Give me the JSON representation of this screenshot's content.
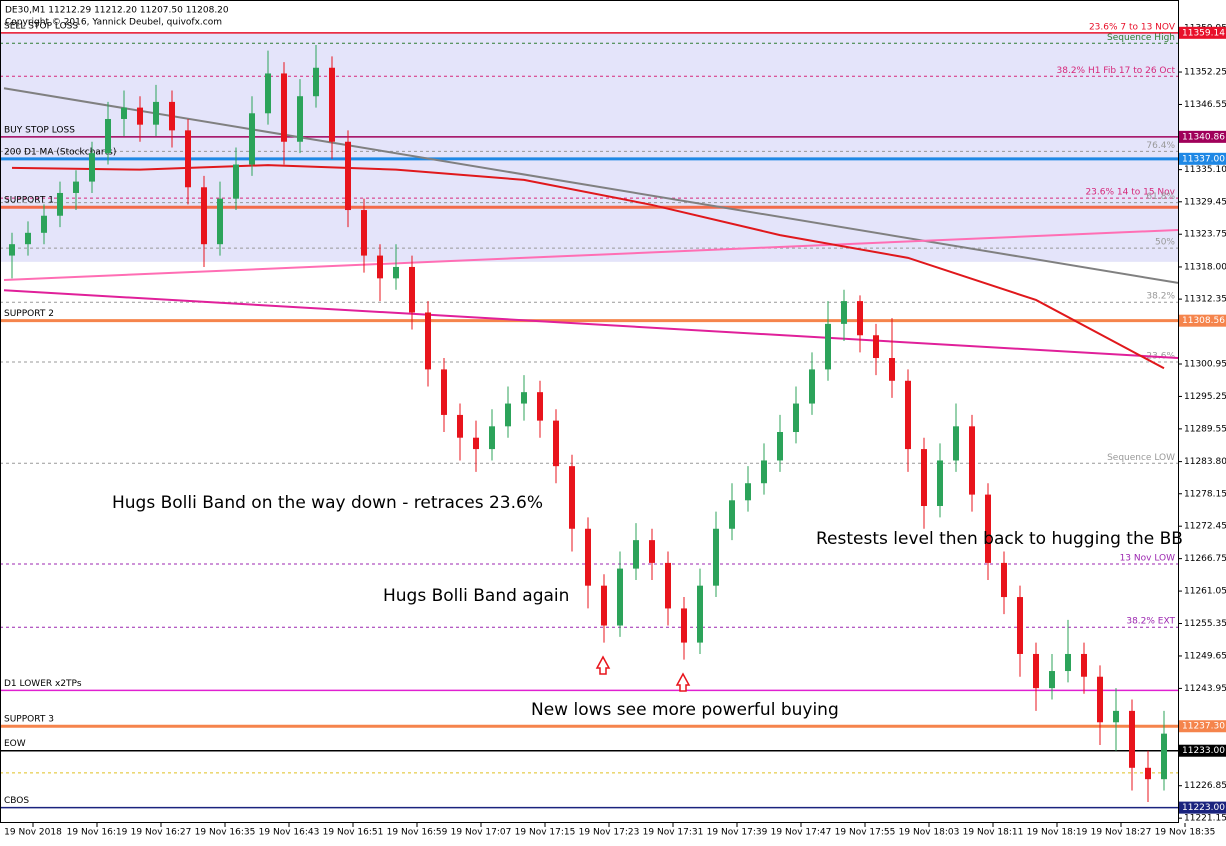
{
  "chart_data": {
    "type": "candlestick",
    "header": "DE30,M1  11212.29 11212.20 11207.50 11208.20",
    "copyright": "Copyright © 2016, Yannick Deubel, quivofx.com",
    "up_color": "#2ca35a",
    "down_color": "#e8141c",
    "ylim": [
      11220.3,
      11363.5
    ],
    "yticks": [
      11359.95,
      11352.25,
      11346.55,
      {
        "value": 11335.1,
        "label": "11335.10"
      },
      11329.45,
      11323.75,
      {
        "value": 11318,
        "label": "11318.00"
      },
      11312.35,
      11300.95,
      11295.25,
      11289.55,
      {
        "value": 11283.8,
        "label": "11283.80"
      },
      11278.15,
      11272.45,
      11266.75,
      11261.05,
      11255.35,
      11249.65,
      11243.95,
      11226.85,
      11221.15
    ],
    "x_labels": [
      "19 Nov 2018",
      "19 Nov 16:19",
      "19 Nov 16:27",
      "19 Nov 16:35",
      "19 Nov 16:43",
      "19 Nov 16:51",
      "19 Nov 16:59",
      "19 Nov 17:07",
      "19 Nov 17:15",
      "19 Nov 17:23",
      "19 Nov 17:31",
      "19 Nov 17:39",
      "19 Nov 17:47",
      "19 Nov 17:55",
      "19 Nov 18:03",
      "19 Nov 18:11",
      "19 Nov 18:19",
      "19 Nov 18:27",
      "19 Nov 18:35"
    ],
    "candles": [
      [
        11320,
        11324,
        11316,
        11322
      ],
      [
        11322,
        11326,
        11320,
        11324
      ],
      [
        11324,
        11329,
        11322,
        11327
      ],
      [
        11327,
        11333,
        11325,
        11331
      ],
      [
        11331,
        11335,
        11328,
        11333
      ],
      [
        11333,
        11340,
        11331,
        11338
      ],
      [
        11338,
        11347,
        11336,
        11344
      ],
      [
        11344,
        11349,
        11341,
        11346
      ],
      [
        11346,
        11348,
        11340,
        11343
      ],
      [
        11343,
        11350,
        11341,
        11347
      ],
      [
        11347,
        11349,
        11339,
        11342
      ],
      [
        11342,
        11344,
        11329,
        11332
      ],
      [
        11332,
        11334,
        11318,
        11322
      ],
      [
        11322,
        11333,
        11320,
        11330
      ],
      [
        11330,
        11339,
        11328,
        11336
      ],
      [
        11336,
        11348,
        11334,
        11345
      ],
      [
        11345,
        11356,
        11343,
        11352
      ],
      [
        11352,
        11354,
        11336,
        11340
      ],
      [
        11340,
        11351,
        11338,
        11348
      ],
      [
        11348,
        11357,
        11346,
        11353
      ],
      [
        11353,
        11355,
        11337,
        11340
      ],
      [
        11340,
        11342,
        11325,
        11328
      ],
      [
        11328,
        11330,
        11317,
        11320
      ],
      [
        11320,
        11322,
        11312,
        11316
      ],
      [
        11316,
        11322,
        11314,
        11318
      ],
      [
        11318,
        11320,
        11307,
        11310
      ],
      [
        11310,
        11312,
        11297,
        11300
      ],
      [
        11300,
        11302,
        11289,
        11292
      ],
      [
        11292,
        11294,
        11284,
        11288
      ],
      [
        11288,
        11291,
        11282,
        11286
      ],
      [
        11286,
        11293,
        11284,
        11290
      ],
      [
        11290,
        11297,
        11288,
        11294
      ],
      [
        11294,
        11299,
        11291,
        11296
      ],
      [
        11296,
        11298,
        11288,
        11291
      ],
      [
        11291,
        11293,
        11280,
        11283
      ],
      [
        11283,
        11285,
        11268,
        11272
      ],
      [
        11272,
        11274,
        11258,
        11262
      ],
      [
        11262,
        11264,
        11252,
        11255
      ],
      [
        11255,
        11268,
        11253,
        11265
      ],
      [
        11265,
        11273,
        11263,
        11270
      ],
      [
        11270,
        11272,
        11263,
        11266
      ],
      [
        11266,
        11268,
        11255,
        11258
      ],
      [
        11258,
        11260,
        11249,
        11252
      ],
      [
        11252,
        11265,
        11250,
        11262
      ],
      [
        11262,
        11275,
        11260,
        11272
      ],
      [
        11272,
        11280,
        11270,
        11277
      ],
      [
        11277,
        11283,
        11275,
        11280
      ],
      [
        11280,
        11287,
        11278,
        11284
      ],
      [
        11284,
        11292,
        11282,
        11289
      ],
      [
        11289,
        11297,
        11287,
        11294
      ],
      [
        11294,
        11303,
        11292,
        11300
      ],
      [
        11300,
        11312,
        11298,
        11308
      ],
      [
        11308,
        11314,
        11305,
        11312
      ],
      [
        11312,
        11313,
        11303,
        11306
      ],
      [
        11306,
        11308,
        11299,
        11302
      ],
      [
        11302,
        11309,
        11295,
        11298
      ],
      [
        11298,
        11300,
        11282,
        11286
      ],
      [
        11286,
        11288,
        11272,
        11276
      ],
      [
        11276,
        11287,
        11274,
        11284
      ],
      [
        11284,
        11294,
        11282,
        11290
      ],
      [
        11290,
        11292,
        11275,
        11278
      ],
      [
        11278,
        11280,
        11263,
        11266
      ],
      [
        11266,
        11268,
        11257,
        11260
      ],
      [
        11260,
        11262,
        11246,
        11250
      ],
      [
        11250,
        11252,
        11240,
        11244
      ],
      [
        11244,
        11250,
        11242,
        11247
      ],
      [
        11247,
        11256,
        11245,
        11250
      ],
      [
        11250,
        11252,
        11243,
        11246
      ],
      [
        11246,
        11248,
        11234,
        11238
      ],
      [
        11238,
        11244,
        11233,
        11240
      ],
      [
        11240,
        11242,
        11226,
        11230
      ],
      [
        11230,
        11233,
        11224,
        11228
      ],
      [
        11228,
        11240,
        11226,
        11236
      ]
    ],
    "zone": {
      "color": "#e4e4fa",
      "values": [
        11318.9,
        11359.1
      ]
    },
    "trendlines": [
      {
        "color": "#808080",
        "values": [
          11349.4,
          11315.2
        ]
      },
      {
        "color": "#ff6eb4",
        "values": [
          11315.7,
          11324.5
        ]
      },
      {
        "color": "#e0209a",
        "values": [
          11313.9,
          11302.0
        ]
      }
    ],
    "series": [
      {
        "color": "#e0181c",
        "values": [
          11335.4,
          11335.1,
          11335.9,
          11335.1,
          11333.3,
          11328.9,
          11323.6,
          11319.6,
          11312.2,
          11300.2
        ]
      }
    ],
    "levels": [
      {
        "price": 11359.14,
        "color": "#e8102a",
        "style": "solid",
        "left_label": "SELL STOP LOSS",
        "right_label": "23.6%   7 to 13 NOV",
        "tag": "11359.14"
      },
      {
        "price": 11357.3,
        "color": "#2e7d32",
        "style": "dash",
        "right_label": "Sequence High"
      },
      {
        "price": 11351.5,
        "color": "#d6287a",
        "style": "dash",
        "right_label": "38.2%   H1 Fib 17 to 26 Oct"
      },
      {
        "price": 11340.86,
        "color": "#a0005a",
        "style": "solid",
        "left_label": "BUY STOP LOSS",
        "tag": "11340.86"
      },
      {
        "price": 11338.3,
        "color": "#999999",
        "style": "dash",
        "right_label": "76.4%"
      },
      {
        "price": 11337,
        "color": "#1e88e5",
        "style": "solid",
        "left_label": "200 D1 MA (Stockcharts)",
        "tag": "11337.00"
      },
      {
        "price": 11330.1,
        "color": "#d6287a",
        "style": "dash",
        "right_label": "23.6%   14 to 15 Nov"
      },
      {
        "price": 11329.3,
        "color": "#999999",
        "style": "dash",
        "right_label": "61.8%"
      },
      {
        "price": 11328.5,
        "color": "#f26b4a",
        "style": "solid",
        "left_label": "SUPPORT 1"
      },
      {
        "price": 11321.3,
        "color": "#999999",
        "style": "dash",
        "right_label": "50%"
      },
      {
        "price": 11311.8,
        "color": "#999999",
        "style": "dash",
        "right_label": "38.2%"
      },
      {
        "price": 11308.56,
        "color": "#f5844c",
        "style": "solid",
        "left_label": "SUPPORT 2",
        "tag": "11308.56"
      },
      {
        "price": 11301.3,
        "color": "#999999",
        "style": "dash",
        "right_label": "23.6%"
      },
      {
        "price": 11283.5,
        "color": "#999999",
        "style": "dash",
        "right_label": "Sequence LOW"
      },
      {
        "price": 11265.8,
        "color": "#9c27b0",
        "style": "dash",
        "right_label": "13 Nov LOW"
      },
      {
        "price": 11254.7,
        "color": "#9c27b0",
        "style": "dash",
        "right_label": "38.2% EXT"
      },
      {
        "price": 11243.6,
        "color": "#e020d0",
        "style": "solid",
        "left_label": "D1 LOWER x2TPs"
      },
      {
        "price": 11237.3,
        "color": "#f5844c",
        "style": "solid",
        "left_label": "SUPPORT 3",
        "tag": "11237.30"
      },
      {
        "price": 11233,
        "color": "#000000",
        "style": "solid",
        "left_label": "EOW",
        "tag": "11233.00"
      },
      {
        "price": 11229.1,
        "color": "#e0c020",
        "style": "dash"
      },
      {
        "price": 11223,
        "color": "#1a237e",
        "style": "solid",
        "left_label": "CBOS",
        "tag": "11223.00"
      }
    ],
    "annotations": [
      "Hugs Bolli Band on the way down - retraces 23.6%",
      "Hugs Bolli Band again",
      "Restests level then back to hugging the BB",
      "New lows see more powerful buying"
    ]
  }
}
